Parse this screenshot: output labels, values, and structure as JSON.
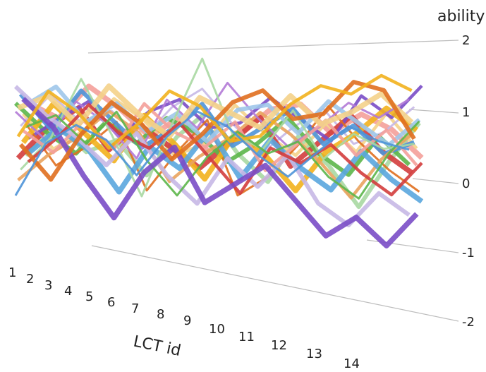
{
  "chart_data": {
    "type": "line",
    "rendering": "3d-ribbon",
    "title": "",
    "xlabel": "LCT id",
    "zlabel": "ability",
    "x": [
      "1",
      "2",
      "3",
      "4",
      "5",
      "6",
      "7",
      "8",
      "9",
      "10",
      "11",
      "12",
      "13",
      "14"
    ],
    "z_ticks": [
      "2",
      "1",
      "0",
      "-1",
      "-2"
    ],
    "zlim": [
      -2,
      2
    ],
    "grid": false,
    "legend": "none",
    "palette": [
      "#4e94d8",
      "#f2b11d",
      "#e06f1f",
      "#7a4cc6",
      "#5cb64a",
      "#d33d3d",
      "#c7b8e6",
      "#f4d28a",
      "#a9d8a2",
      "#f4a09a",
      "#9fc6ea",
      "#5aa6de",
      "#b37ad6",
      "#e9a35e"
    ],
    "series": [
      {
        "values": [
          -0.6,
          0.2,
          0.5,
          0.3,
          -0.2,
          0.4,
          0.8,
          0.6,
          0.2,
          -0.1,
          0.3,
          0.7,
          0.5,
          0.4
        ]
      },
      {
        "values": [
          0.3,
          1.0,
          0.7,
          0.2,
          0.6,
          1.1,
          0.9,
          0.4,
          0.5,
          1.0,
          1.3,
          1.2,
          1.5,
          1.3
        ]
      },
      {
        "values": [
          0.2,
          -0.3,
          0.4,
          0.9,
          0.6,
          0.1,
          0.5,
          1.0,
          1.2,
          0.8,
          0.9,
          1.4,
          1.3,
          0.6
        ]
      },
      {
        "values": [
          0.9,
          0.5,
          -0.2,
          -0.8,
          -0.1,
          0.3,
          -0.5,
          -0.2,
          0.1,
          -0.4,
          -0.9,
          -0.6,
          -1.0,
          -0.5
        ]
      },
      {
        "values": [
          0.5,
          0.7,
          0.3,
          0.8,
          0.1,
          -0.4,
          0.2,
          0.6,
          0.3,
          0.5,
          0.0,
          -0.3,
          0.4,
          0.9
        ]
      },
      {
        "values": [
          0.0,
          0.4,
          0.9,
          0.5,
          0.3,
          0.7,
          0.2,
          -0.3,
          0.4,
          0.2,
          0.5,
          0.1,
          -0.2,
          0.3
        ]
      },
      {
        "values": [
          1.0,
          0.6,
          0.3,
          -0.1,
          0.4,
          -0.2,
          -0.6,
          0.1,
          -0.3,
          0.2,
          -0.5,
          -0.8,
          -0.3,
          -0.6
        ]
      },
      {
        "values": [
          0.7,
          0.9,
          0.5,
          1.1,
          0.7,
          0.4,
          1.0,
          0.8,
          0.6,
          1.1,
          0.7,
          0.9,
          1.2,
          0.8
        ]
      },
      {
        "values": [
          -0.2,
          0.3,
          1.2,
          0.4,
          -0.5,
          0.6,
          1.6,
          0.5,
          0.3,
          0.9,
          0.2,
          0.6,
          0.4,
          0.5
        ]
      },
      {
        "values": [
          0.4,
          0.1,
          0.6,
          0.2,
          0.9,
          0.5,
          0.3,
          0.7,
          0.0,
          0.4,
          0.8,
          0.3,
          0.7,
          0.2
        ]
      },
      {
        "values": [
          0.8,
          1.1,
          0.6,
          0.9,
          0.5,
          0.8,
          0.4,
          0.9,
          1.0,
          0.6,
          1.1,
          0.8,
          0.5,
          0.9
        ]
      },
      {
        "values": [
          0.1,
          0.5,
          0.2,
          -0.4,
          0.3,
          0.0,
          0.6,
          -0.1,
          0.5,
          0.1,
          -0.2,
          0.4,
          0.0,
          -0.3
        ]
      },
      {
        "values": [
          0.6,
          0.2,
          0.8,
          0.5,
          0.0,
          0.9,
          0.5,
          1.2,
          0.7,
          0.3,
          0.6,
          1.0,
          0.8,
          1.1
        ]
      },
      {
        "values": [
          -0.4,
          0.0,
          0.3,
          0.7,
          0.4,
          -0.3,
          0.1,
          0.4,
          0.8,
          0.5,
          0.1,
          -0.4,
          0.2,
          0.6
        ]
      },
      {
        "values": [
          0.9,
          0.4,
          1.0,
          0.6,
          0.2,
          0.5,
          0.9,
          0.3,
          0.6,
          0.9,
          0.4,
          0.7,
          0.3,
          0.5
        ]
      },
      {
        "values": [
          0.2,
          0.8,
          0.4,
          0.0,
          0.7,
          0.3,
          -0.2,
          0.5,
          0.2,
          -0.3,
          0.3,
          0.6,
          1.0,
          0.7
        ]
      },
      {
        "values": [
          0.5,
          -0.1,
          0.2,
          0.6,
          -0.4,
          0.2,
          0.7,
          -0.4,
          -0.1,
          0.4,
          1.0,
          0.5,
          0.1,
          -0.2
        ]
      },
      {
        "values": [
          0.3,
          0.6,
          0.9,
          0.4,
          0.8,
          1.0,
          0.6,
          0.7,
          1.1,
          0.8,
          0.5,
          1.2,
          0.9,
          1.4
        ]
      },
      {
        "values": [
          0.7,
          0.3,
          0.0,
          0.5,
          0.2,
          0.6,
          0.4,
          0.0,
          0.3,
          0.7,
          0.2,
          -0.1,
          0.5,
          0.1
        ]
      },
      {
        "values": [
          -0.1,
          0.4,
          0.7,
          0.1,
          0.5,
          0.2,
          -0.1,
          0.3,
          0.7,
          0.0,
          0.4,
          0.8,
          0.3,
          0.0
        ]
      },
      {
        "values": [
          0.4,
          0.9,
          0.5,
          0.7,
          0.3,
          0.8,
          1.1,
          0.6,
          0.2,
          0.6,
          0.9,
          0.4,
          0.6,
          1.0
        ]
      },
      {
        "values": [
          0.6,
          0.1,
          0.4,
          0.9,
          0.6,
          0.1,
          0.3,
          0.9,
          0.5,
          0.2,
          0.7,
          0.3,
          0.9,
          0.4
        ]
      },
      {
        "values": [
          0.0,
          0.5,
          0.1,
          0.3,
          -0.2,
          0.4,
          0.8,
          0.2,
          -0.2,
          0.5,
          0.1,
          -0.5,
          0.2,
          0.8
        ]
      },
      {
        "values": [
          0.8,
          0.6,
          1.1,
          0.8,
          0.4,
          0.7,
          0.2,
          0.5,
          0.9,
          1.0,
          0.6,
          0.9,
          0.7,
          0.3
        ]
      }
    ]
  }
}
